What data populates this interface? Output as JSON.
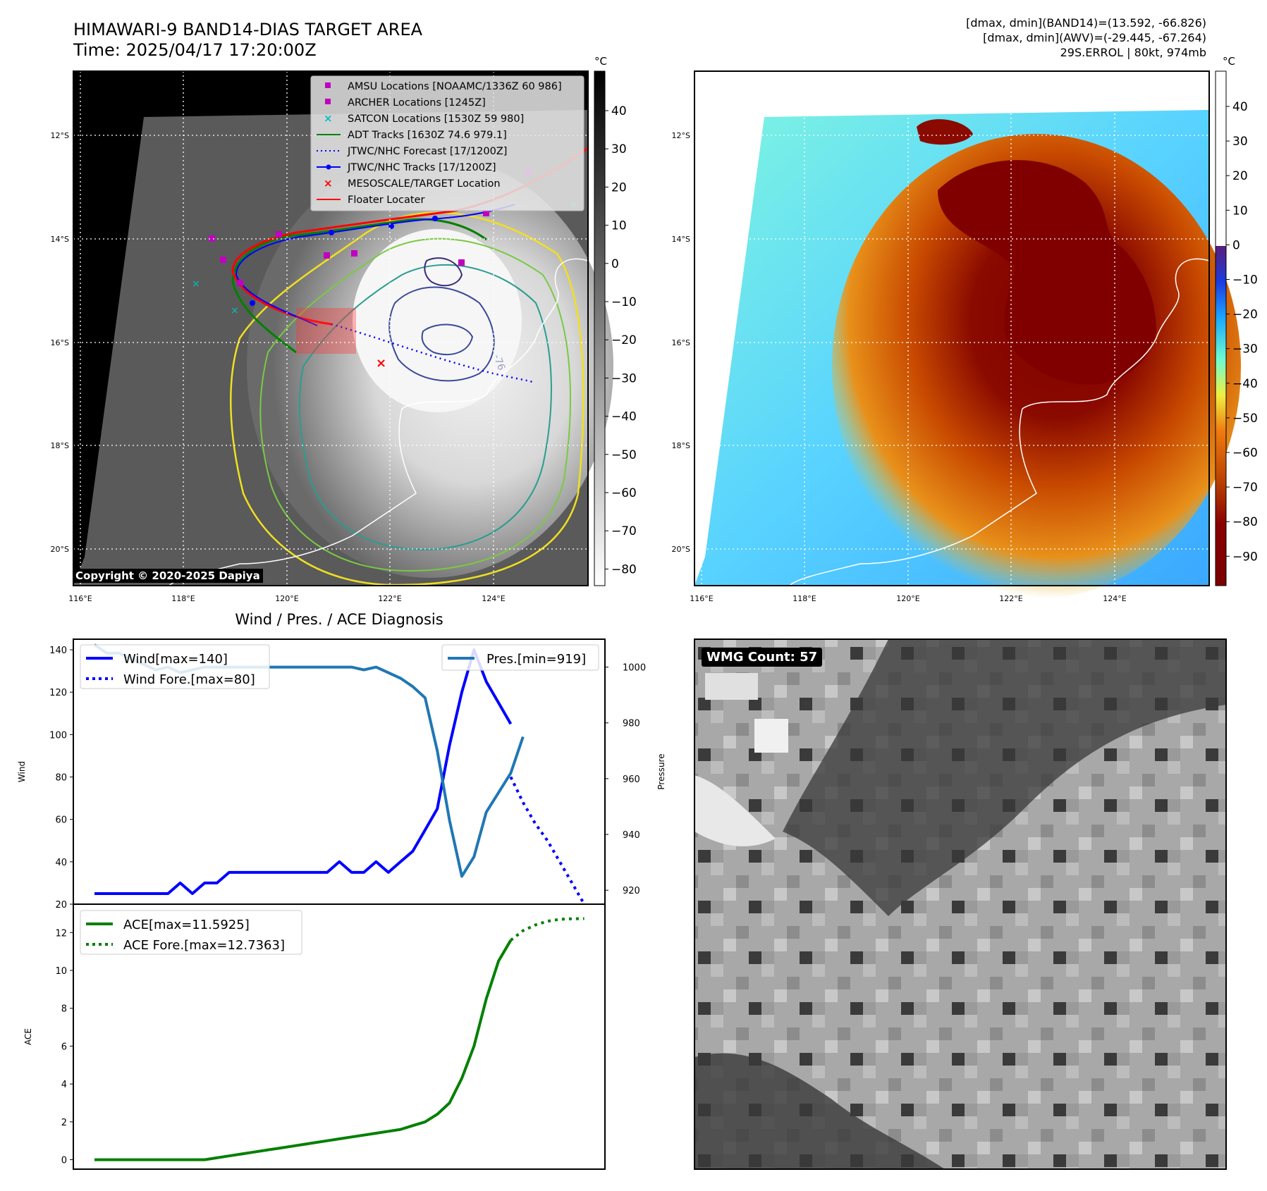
{
  "header": {
    "title_line1": "HIMAWARI-9 BAND14-DIAS TARGET AREA",
    "title_line2": "Time: 2025/04/17 17:20:00Z",
    "info_line1": "[dmax, dmin](BAND14)=(13.592, -66.826)",
    "info_line2": "[dmax, dmin](AWV)=(-29.445, -67.264)",
    "info_line3": "29S.ERROL | 80kt, 974mb"
  },
  "maps": {
    "lat_labels": [
      "12°S",
      "14°S",
      "16°S",
      "18°S",
      "20°S"
    ],
    "lon_labels": [
      "116°E",
      "118°E",
      "120°E",
      "122°E",
      "124°E"
    ],
    "colorbar_unit": "°C",
    "gray_colorbar_ticks": [
      "40",
      "30",
      "20",
      "10",
      "0",
      "−10",
      "−20",
      "−30",
      "−40",
      "−50",
      "−60",
      "−70",
      "−80"
    ],
    "color_colorbar_ticks": [
      "40",
      "30",
      "20",
      "10",
      "0",
      "−10",
      "−20",
      "−30",
      "−40",
      "−50",
      "−60",
      "−70",
      "−80",
      "−90"
    ],
    "contour_label": "-76",
    "copyright": "Copyright © 2020-2025 Dapiya",
    "legend": [
      {
        "label": "AMSU Locations [NOAAMC/1336Z 60 986]",
        "color": "#c000c0",
        "marker": "square"
      },
      {
        "label": "ARCHER Locations [1245Z]",
        "color": "#c000c0",
        "marker": "square"
      },
      {
        "label": "SATCON Locations [1530Z 59 980]",
        "color": "#00c0c0",
        "marker": "x"
      },
      {
        "label": "ADT Tracks [1630Z 74.6 979.1]",
        "color": "#008000",
        "marker": "line"
      },
      {
        "label": "JTWC/NHC Forecast [17/1200Z]",
        "color": "#0000ff",
        "marker": "dotted"
      },
      {
        "label": "JTWC/NHC Tracks [17/1200Z]",
        "color": "#0000ff",
        "marker": "line-dot"
      },
      {
        "label": "MESOSCALE/TARGET Location",
        "color": "#ff0000",
        "marker": "x"
      },
      {
        "label": "Floater Locater",
        "color": "#ff0000",
        "marker": "line"
      }
    ]
  },
  "diagnosis": {
    "title": "Wind / Pres. / ACE Diagnosis",
    "wind_ylabel": "Wind",
    "pres_ylabel": "Pressure",
    "ace_ylabel": "ACE",
    "wind_legend": "Wind[max=140]",
    "wind_fore_legend": "Wind Fore.[max=80]",
    "pres_legend": "Pres.[min=919]",
    "ace_legend": "ACE[max=11.5925]",
    "ace_fore_legend": "ACE Fore.[max=12.7363]"
  },
  "wmg": {
    "label": "WMG Count: 57"
  },
  "chart_data": [
    {
      "type": "line",
      "title": "Wind / Pres. / ACE Diagnosis",
      "ylabel": "Wind",
      "ylim": [
        20,
        145
      ],
      "y_ticks": [
        20,
        40,
        60,
        80,
        100,
        120,
        140
      ],
      "xlim": [
        0,
        41
      ],
      "series": [
        {
          "name": "Wind[max=140]",
          "color": "#0000ff",
          "style": "solid",
          "x": [
            0,
            1,
            2,
            3,
            4,
            5,
            6,
            7,
            8,
            9,
            10,
            11,
            12,
            13,
            14,
            15,
            16,
            17,
            18,
            19,
            20,
            21,
            22,
            23,
            24,
            25,
            26,
            27,
            28,
            29,
            30,
            31,
            32,
            33,
            34
          ],
          "values": [
            25,
            25,
            25,
            25,
            25,
            25,
            25,
            30,
            25,
            30,
            30,
            35,
            35,
            35,
            35,
            35,
            35,
            35,
            35,
            35,
            40,
            35,
            35,
            40,
            35,
            40,
            45,
            55,
            65,
            95,
            120,
            140,
            125,
            115,
            105
          ]
        },
        {
          "name": "Wind Fore.[max=80]",
          "color": "#0000ff",
          "style": "dotted",
          "x": [
            34,
            35,
            36,
            37,
            38,
            39,
            40
          ],
          "values": [
            80,
            68,
            58,
            50,
            40,
            30,
            20
          ]
        }
      ]
    },
    {
      "type": "line",
      "ylabel": "Pressure",
      "ylim": [
        915,
        1010
      ],
      "y_ticks": [
        920,
        940,
        960,
        980,
        1000
      ],
      "xlim": [
        0,
        41
      ],
      "series": [
        {
          "name": "Pres.[min=919]",
          "color": "#1f77b4",
          "style": "solid",
          "x": [
            0,
            1,
            2,
            3,
            4,
            5,
            6,
            7,
            8,
            9,
            10,
            11,
            12,
            13,
            14,
            15,
            16,
            17,
            18,
            19,
            20,
            21,
            22,
            23,
            24,
            25,
            26,
            27,
            28,
            29,
            30,
            31,
            32,
            33,
            34,
            35
          ],
          "values": [
            1008,
            1005,
            1005,
            1003,
            1001,
            999,
            1000,
            998,
            999,
            1000,
            1000,
            1000,
            1000,
            1000,
            1000,
            1000,
            1000,
            1000,
            1000,
            1000,
            1000,
            1000,
            999,
            1000,
            998,
            996,
            993,
            989,
            970,
            945,
            925,
            932,
            948,
            955,
            962,
            975
          ]
        }
      ]
    },
    {
      "type": "line",
      "ylabel": "ACE",
      "ylim": [
        -0.5,
        13.5
      ],
      "y_ticks": [
        0,
        2,
        4,
        6,
        8,
        10,
        12
      ],
      "xlim": [
        0,
        41
      ],
      "series": [
        {
          "name": "ACE[max=11.5925]",
          "color": "#008000",
          "style": "solid",
          "x": [
            0,
            1,
            2,
            3,
            4,
            5,
            6,
            7,
            8,
            9,
            10,
            11,
            12,
            13,
            14,
            15,
            16,
            17,
            18,
            19,
            20,
            21,
            22,
            23,
            24,
            25,
            26,
            27,
            28,
            29,
            30,
            31,
            32,
            33,
            34
          ],
          "values": [
            0,
            0,
            0,
            0,
            0,
            0,
            0,
            0,
            0,
            0,
            0.1,
            0.2,
            0.3,
            0.4,
            0.5,
            0.6,
            0.7,
            0.8,
            0.9,
            1.0,
            1.1,
            1.2,
            1.3,
            1.4,
            1.5,
            1.6,
            1.8,
            2.0,
            2.4,
            3.0,
            4.3,
            6.0,
            8.5,
            10.5,
            11.5925
          ]
        },
        {
          "name": "ACE Fore.[max=12.7363]",
          "color": "#008000",
          "style": "dotted",
          "x": [
            34,
            35,
            36,
            37,
            38,
            39,
            40
          ],
          "values": [
            11.5925,
            12.1,
            12.4,
            12.6,
            12.7,
            12.73,
            12.7363
          ]
        }
      ]
    }
  ]
}
